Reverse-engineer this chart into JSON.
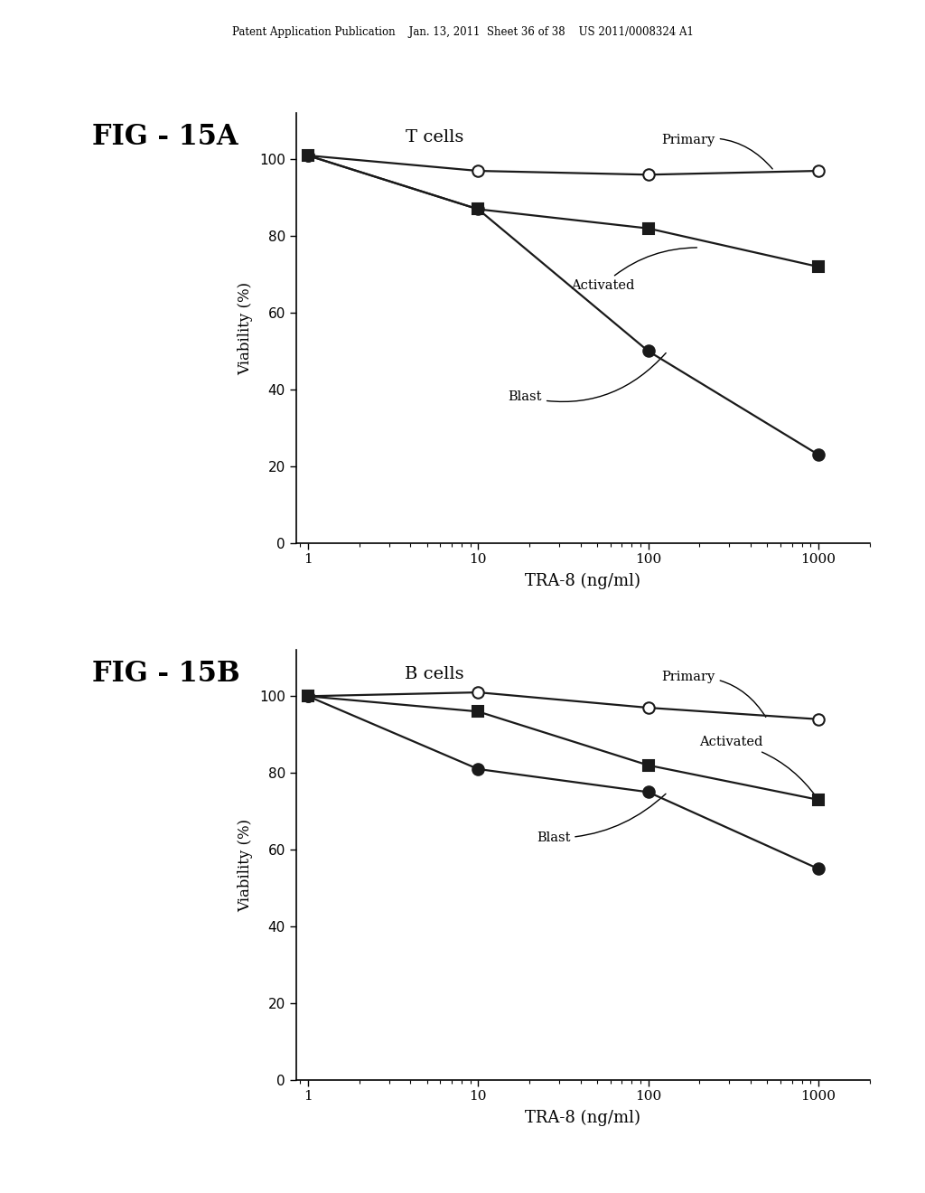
{
  "header_text": "Patent Application Publication    Jan. 13, 2011  Sheet 36 of 38    US 2011/0008324 A1",
  "fig_A": {
    "fig_label": "FIG - 15A",
    "subtitle": "T cells",
    "xlabel": "TRA-8 (ng/ml)",
    "ylabel": "Viability (%)",
    "x": [
      1,
      10,
      100,
      1000
    ],
    "primary": [
      101,
      97,
      96,
      97
    ],
    "activated": [
      101,
      87,
      82,
      72
    ],
    "blast": [
      101,
      87,
      50,
      23
    ],
    "ylim": [
      0,
      112
    ],
    "yticks": [
      0,
      20,
      40,
      60,
      80,
      100
    ]
  },
  "fig_B": {
    "fig_label": "FIG - 15B",
    "subtitle": "B cells",
    "xlabel": "TRA-8 (ng/ml)",
    "ylabel": "Viability (%)",
    "x": [
      1,
      10,
      100,
      1000
    ],
    "primary": [
      100,
      101,
      97,
      94
    ],
    "activated": [
      100,
      96,
      82,
      73
    ],
    "blast": [
      100,
      81,
      75,
      55
    ],
    "ylim": [
      0,
      112
    ],
    "yticks": [
      0,
      20,
      40,
      60,
      80,
      100
    ]
  },
  "line_color": "#1a1a1a",
  "marker_size": 9,
  "linewidth": 1.6
}
